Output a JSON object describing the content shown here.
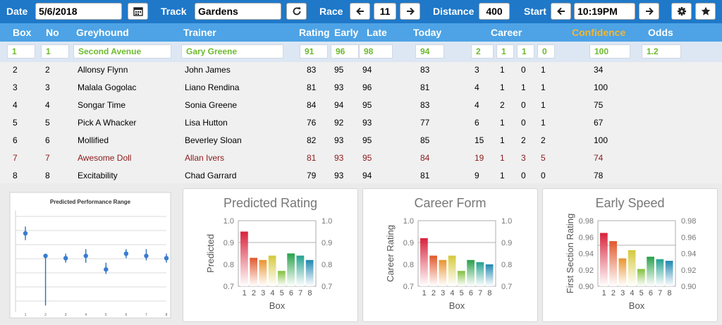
{
  "toolbar": {
    "date_label": "Date",
    "date_value": "5/6/2018",
    "track_label": "Track",
    "track_value": "Gardens",
    "race_label": "Race",
    "race_value": "11",
    "distance_label": "Distance",
    "distance_value": "400",
    "start_label": "Start",
    "start_value": "10:19PM"
  },
  "columns": [
    "Box",
    "No",
    "Greyhound",
    "Trainer",
    "Rating",
    "Early",
    "Late",
    "Today",
    "Career",
    "Confidence",
    "Odds"
  ],
  "selected": {
    "box": "1",
    "no": "1",
    "greyhound": "Second Avenue",
    "trainer": "Gary Greene",
    "rating": "91",
    "early": "96",
    "late": "98",
    "today": "94",
    "career": [
      "2",
      "1",
      "1",
      "0"
    ],
    "confidence": "100",
    "odds": "1.2"
  },
  "rows": [
    {
      "box": "2",
      "no": "2",
      "greyhound": "Allonsy Flynn",
      "trainer": "John James",
      "rating": "83",
      "early": "95",
      "late": "94",
      "today": "83",
      "career": [
        "3",
        "1",
        "0",
        "1"
      ],
      "confidence": "34"
    },
    {
      "box": "3",
      "no": "3",
      "greyhound": "Malala Gogolac",
      "trainer": "Liano Rendina",
      "rating": "81",
      "early": "93",
      "late": "96",
      "today": "81",
      "career": [
        "4",
        "1",
        "1",
        "1"
      ],
      "confidence": "100"
    },
    {
      "box": "4",
      "no": "4",
      "greyhound": "Songar Time",
      "trainer": "Sonia Greene",
      "rating": "84",
      "early": "94",
      "late": "95",
      "today": "83",
      "career": [
        "4",
        "2",
        "0",
        "1"
      ],
      "confidence": "75"
    },
    {
      "box": "5",
      "no": "5",
      "greyhound": "Pick A Whacker",
      "trainer": "Lisa Hutton",
      "rating": "76",
      "early": "92",
      "late": "93",
      "today": "77",
      "career": [
        "6",
        "1",
        "0",
        "1"
      ],
      "confidence": "67"
    },
    {
      "box": "6",
      "no": "6",
      "greyhound": "Mollified",
      "trainer": "Beverley Sloan",
      "rating": "82",
      "early": "93",
      "late": "95",
      "today": "85",
      "career": [
        "15",
        "1",
        "2",
        "2"
      ],
      "confidence": "100"
    },
    {
      "box": "7",
      "no": "7",
      "greyhound": "Awesome Doll",
      "trainer": "Allan Ivers",
      "rating": "81",
      "early": "93",
      "late": "95",
      "today": "84",
      "career": [
        "19",
        "1",
        "3",
        "5"
      ],
      "confidence": "74",
      "highlight": true
    },
    {
      "box": "8",
      "no": "8",
      "greyhound": "Excitability",
      "trainer": "Chad Garrard",
      "rating": "79",
      "early": "93",
      "late": "94",
      "today": "81",
      "career": [
        "9",
        "1",
        "0",
        "0"
      ],
      "confidence": "78"
    }
  ],
  "colors": {
    "toolbar": "#1f78c8",
    "header": "#4da3e5",
    "confidence_header": "#f5b731",
    "selected_text": "#6dba2c",
    "highlight_text": "#8b1a1a"
  },
  "icons": [
    "calendar-icon",
    "refresh-icon",
    "arrow-left-icon",
    "arrow-right-icon",
    "gear-icon",
    "star-icon"
  ],
  "chart_data": [
    {
      "type": "scatter",
      "title": "Predicted Performance Range",
      "categories": [
        "1",
        "2",
        "3",
        "4",
        "5",
        "6",
        "7",
        "8"
      ],
      "values": [
        0.9,
        0.8,
        0.79,
        0.8,
        0.74,
        0.81,
        0.8,
        0.79
      ],
      "low": [
        0.87,
        0.58,
        0.77,
        0.77,
        0.72,
        0.79,
        0.78,
        0.77
      ],
      "high": [
        0.93,
        0.8,
        0.81,
        0.83,
        0.77,
        0.83,
        0.83,
        0.81
      ],
      "ylim": [
        0.55,
        1.0
      ]
    },
    {
      "type": "bar",
      "title": "Predicted Rating",
      "xlabel": "Box",
      "ylabel": "Predicted",
      "categories": [
        "1",
        "2",
        "3",
        "4",
        "5",
        "6",
        "7",
        "8"
      ],
      "values": [
        0.95,
        0.83,
        0.82,
        0.84,
        0.77,
        0.85,
        0.84,
        0.82
      ],
      "ylim": [
        0.7,
        1.0
      ],
      "yticks": [
        "0.7",
        "0.8",
        "0.9",
        "1.0"
      ],
      "ref": 0.9
    },
    {
      "type": "bar",
      "title": "Career Form",
      "xlabel": "Box",
      "ylabel": "Career Rating",
      "categories": [
        "1",
        "2",
        "3",
        "4",
        "5",
        "6",
        "7",
        "8"
      ],
      "values": [
        0.92,
        0.84,
        0.82,
        0.84,
        0.77,
        0.82,
        0.81,
        0.8
      ],
      "ylim": [
        0.7,
        1.0
      ],
      "yticks": [
        "0.7",
        "0.8",
        "0.9",
        "1.0"
      ],
      "ref": 0.9
    },
    {
      "type": "bar",
      "title": "Early Speed",
      "xlabel": "Box",
      "ylabel": "First Section Rating",
      "categories": [
        "1",
        "2",
        "3",
        "4",
        "5",
        "6",
        "7",
        "8"
      ],
      "values": [
        0.965,
        0.955,
        0.934,
        0.944,
        0.921,
        0.936,
        0.933,
        0.931
      ],
      "ylim": [
        0.9,
        0.98
      ],
      "yticks": [
        "0.90",
        "0.92",
        "0.94",
        "0.96",
        "0.98"
      ],
      "ref": 0.95
    }
  ]
}
